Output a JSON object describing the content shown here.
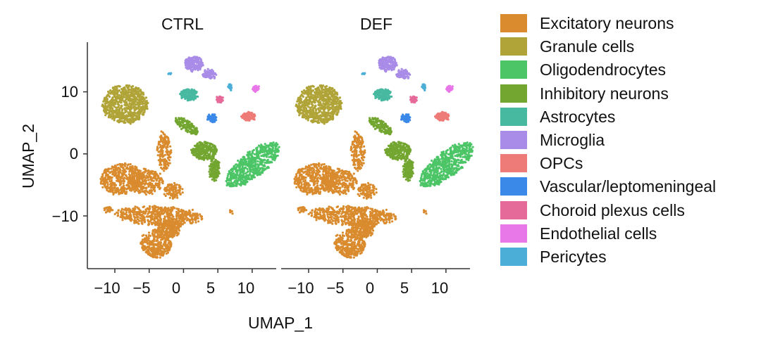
{
  "chart_data": {
    "type": "scatter",
    "title": "",
    "xlabel": "UMAP_1",
    "ylabel": "UMAP_2",
    "xlim": [
      -14,
      13.5
    ],
    "ylim": [
      -18.5,
      18
    ],
    "x_ticks": [
      -10,
      -5,
      0,
      5,
      10
    ],
    "x_tick_labels": [
      "−10",
      "−5",
      "0",
      "5",
      "10"
    ],
    "y_ticks": [
      10,
      0,
      -10
    ],
    "y_tick_labels": [
      "10",
      "0",
      "−10"
    ],
    "facets": [
      "CTRL",
      "DEF"
    ],
    "legend_position": "right",
    "series": [
      {
        "name": "Excitatory neurons",
        "color": "#d98b2e",
        "clusters": [
          {
            "cx": -9,
            "cy": -4,
            "rx": 3.2,
            "ry": 2.4,
            "n": 420,
            "rot": 10
          },
          {
            "cx": -5.5,
            "cy": -4.5,
            "rx": 2.6,
            "ry": 2.0,
            "n": 260,
            "rot": 0
          },
          {
            "cx": -3.5,
            "cy": -10,
            "rx": 6.5,
            "ry": 1.5,
            "n": 520,
            "rot": -3
          },
          {
            "cx": -4,
            "cy": -14.5,
            "rx": 2.2,
            "ry": 2.2,
            "n": 320,
            "rot": 0
          },
          {
            "cx": -2,
            "cy": -12,
            "rx": 1.8,
            "ry": 1.4,
            "n": 200,
            "rot": 0
          },
          {
            "cx": -2.8,
            "cy": 0.5,
            "rx": 1.0,
            "ry": 3.2,
            "n": 160,
            "rot": 0
          },
          {
            "cx": -1.5,
            "cy": -6,
            "rx": 1.4,
            "ry": 1.2,
            "n": 100,
            "rot": 0
          },
          {
            "cx": -11,
            "cy": -9,
            "rx": 0.6,
            "ry": 0.4,
            "n": 25,
            "rot": 0
          },
          {
            "cx": 7,
            "cy": -9.3,
            "rx": 0.3,
            "ry": 0.3,
            "n": 8,
            "rot": 0
          }
        ]
      },
      {
        "name": "Granule cells",
        "color": "#b0a438",
        "clusters": [
          {
            "cx": -8.5,
            "cy": 8,
            "rx": 3.3,
            "ry": 3.1,
            "n": 700,
            "rot": 0
          }
        ]
      },
      {
        "name": "Oligodendrocytes",
        "color": "#4cc567",
        "clusters": [
          {
            "cx": 10,
            "cy": -1.8,
            "rx": 5.0,
            "ry": 1.9,
            "n": 600,
            "rot": 42
          }
        ]
      },
      {
        "name": "Inhibitory neurons",
        "color": "#73a630",
        "clusters": [
          {
            "cx": 3,
            "cy": 0.5,
            "rx": 1.8,
            "ry": 1.4,
            "n": 260,
            "rot": 0
          },
          {
            "cx": 4.5,
            "cy": -2.5,
            "rx": 0.8,
            "ry": 1.8,
            "n": 120,
            "rot": 0
          },
          {
            "cx": 0.5,
            "cy": 4.5,
            "rx": 2.0,
            "ry": 0.8,
            "n": 140,
            "rot": -35
          }
        ]
      },
      {
        "name": "Astrocytes",
        "color": "#47b9a0",
        "clusters": [
          {
            "cx": 0.8,
            "cy": 9.5,
            "rx": 1.3,
            "ry": 0.9,
            "n": 160,
            "rot": 0
          }
        ]
      },
      {
        "name": "Microglia",
        "color": "#a98ce8",
        "clusters": [
          {
            "cx": 1.5,
            "cy": 14.5,
            "rx": 1.3,
            "ry": 1.2,
            "n": 180,
            "rot": 0
          },
          {
            "cx": 3.8,
            "cy": 12.8,
            "rx": 1.0,
            "ry": 0.7,
            "n": 80,
            "rot": -20
          }
        ]
      },
      {
        "name": "OPCs",
        "color": "#ee7b77",
        "clusters": [
          {
            "cx": 9.5,
            "cy": 6,
            "rx": 1.0,
            "ry": 0.7,
            "n": 110,
            "rot": 0
          }
        ]
      },
      {
        "name": "Vascular/leptomeningeal",
        "color": "#3a88e8",
        "clusters": [
          {
            "cx": 4.2,
            "cy": 5.7,
            "rx": 0.6,
            "ry": 0.6,
            "n": 60,
            "rot": 0
          }
        ]
      },
      {
        "name": "Choroid plexus cells",
        "color": "#e66a99",
        "clusters": [
          {
            "cx": 5.3,
            "cy": 8.8,
            "rx": 0.5,
            "ry": 0.5,
            "n": 40,
            "rot": 0
          }
        ]
      },
      {
        "name": "Endothelial cells",
        "color": "#e877e8",
        "clusters": [
          {
            "cx": 10.5,
            "cy": 10.5,
            "rx": 0.5,
            "ry": 0.4,
            "n": 40,
            "rot": 0
          }
        ]
      },
      {
        "name": "Pericytes",
        "color": "#4aaed6",
        "clusters": [
          {
            "cx": 6.8,
            "cy": 10.8,
            "rx": 0.25,
            "ry": 0.5,
            "n": 20,
            "rot": 0
          },
          {
            "cx": -2,
            "cy": 13,
            "rx": 0.2,
            "ry": 0.2,
            "n": 5,
            "rot": 0
          }
        ]
      }
    ]
  }
}
